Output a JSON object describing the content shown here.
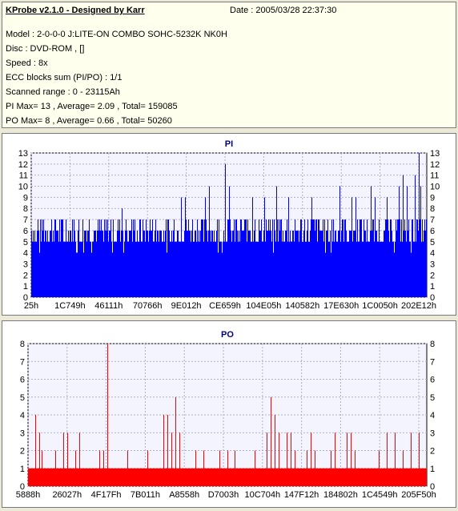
{
  "info": {
    "title": "KProbe v2.1.0 - Designed by Karr",
    "date": "Date : 2005/03/28 22:37:30",
    "lines": [
      "Model : 2-0-0-0 J:LITE-ON COMBO SOHC-5232K NK0H",
      "Disc : DVD-ROM ,  []",
      "Speed : 8x",
      "ECC blocks sum (PI/PO) : 1/1",
      "Scanned range : 0 - 23115Ah",
      "PI Max= 13 , Average= 2.09 , Total= 159085",
      "PO Max= 8 , Average= 0.66 , Total= 50260"
    ]
  },
  "colors": {
    "pi": "#0000ff",
    "po": "#ff0000",
    "title": "#000080"
  },
  "chart_data": [
    {
      "type": "bar",
      "title": "PI",
      "ylim": [
        0,
        13
      ],
      "yticks": [
        0,
        1,
        2,
        3,
        4,
        5,
        6,
        7,
        8,
        9,
        10,
        11,
        12,
        13
      ],
      "grid": true,
      "xticks": [
        "25h",
        "1C749h",
        "46111h",
        "70766h",
        "9E012h",
        "CE659h",
        "104E05h",
        "140582h",
        "17E630h",
        "1C0050h",
        "202E12h"
      ],
      "series": [
        {
          "baseline": 5,
          "typical_max": 7,
          "spikes": [
            [
              0.23,
              8
            ],
            [
              0.38,
              9
            ],
            [
              0.39,
              9
            ],
            [
              0.44,
              9
            ],
            [
              0.45,
              10
            ],
            [
              0.49,
              12
            ],
            [
              0.5,
              10
            ],
            [
              0.56,
              9
            ],
            [
              0.59,
              9
            ],
            [
              0.62,
              10
            ],
            [
              0.65,
              9
            ],
            [
              0.71,
              9
            ],
            [
              0.78,
              10
            ],
            [
              0.81,
              9
            ],
            [
              0.82,
              9
            ],
            [
              0.86,
              10
            ],
            [
              0.87,
              9
            ],
            [
              0.9,
              9
            ],
            [
              0.93,
              10
            ],
            [
              0.94,
              11
            ],
            [
              0.95,
              10
            ],
            [
              0.97,
              11
            ],
            [
              0.98,
              13
            ],
            [
              0.985,
              10
            ]
          ]
        }
      ]
    },
    {
      "type": "bar",
      "title": "PO",
      "ylim": [
        0,
        8
      ],
      "yticks": [
        0,
        1,
        2,
        3,
        4,
        5,
        6,
        7,
        8
      ],
      "grid": true,
      "xticks": [
        "5888h",
        "26027h",
        "4F17Fh",
        "7B011h",
        "A8558h",
        "D7003h",
        "10C704h",
        "147F12h",
        "184802h",
        "1C4549h",
        "205F50h"
      ],
      "series": [
        {
          "baseline": 1,
          "spikes": [
            [
              0.02,
              4
            ],
            [
              0.03,
              3
            ],
            [
              0.035,
              2
            ],
            [
              0.07,
              2
            ],
            [
              0.09,
              3
            ],
            [
              0.1,
              3
            ],
            [
              0.12,
              2
            ],
            [
              0.13,
              3
            ],
            [
              0.18,
              2
            ],
            [
              0.19,
              2
            ],
            [
              0.2,
              8
            ],
            [
              0.25,
              2
            ],
            [
              0.3,
              2
            ],
            [
              0.34,
              4
            ],
            [
              0.35,
              4
            ],
            [
              0.36,
              3
            ],
            [
              0.37,
              5
            ],
            [
              0.38,
              3
            ],
            [
              0.42,
              2
            ],
            [
              0.44,
              2
            ],
            [
              0.48,
              2
            ],
            [
              0.5,
              2
            ],
            [
              0.52,
              2
            ],
            [
              0.57,
              2
            ],
            [
              0.6,
              3
            ],
            [
              0.61,
              5
            ],
            [
              0.62,
              4
            ],
            [
              0.63,
              3
            ],
            [
              0.65,
              3
            ],
            [
              0.66,
              3
            ],
            [
              0.67,
              2
            ],
            [
              0.7,
              2
            ],
            [
              0.71,
              3
            ],
            [
              0.72,
              2
            ],
            [
              0.76,
              2
            ],
            [
              0.77,
              3
            ],
            [
              0.8,
              3
            ],
            [
              0.81,
              3
            ],
            [
              0.82,
              2
            ],
            [
              0.88,
              2
            ],
            [
              0.9,
              3
            ],
            [
              0.92,
              3
            ],
            [
              0.94,
              2
            ],
            [
              0.96,
              3
            ],
            [
              0.98,
              3
            ]
          ]
        }
      ]
    }
  ]
}
